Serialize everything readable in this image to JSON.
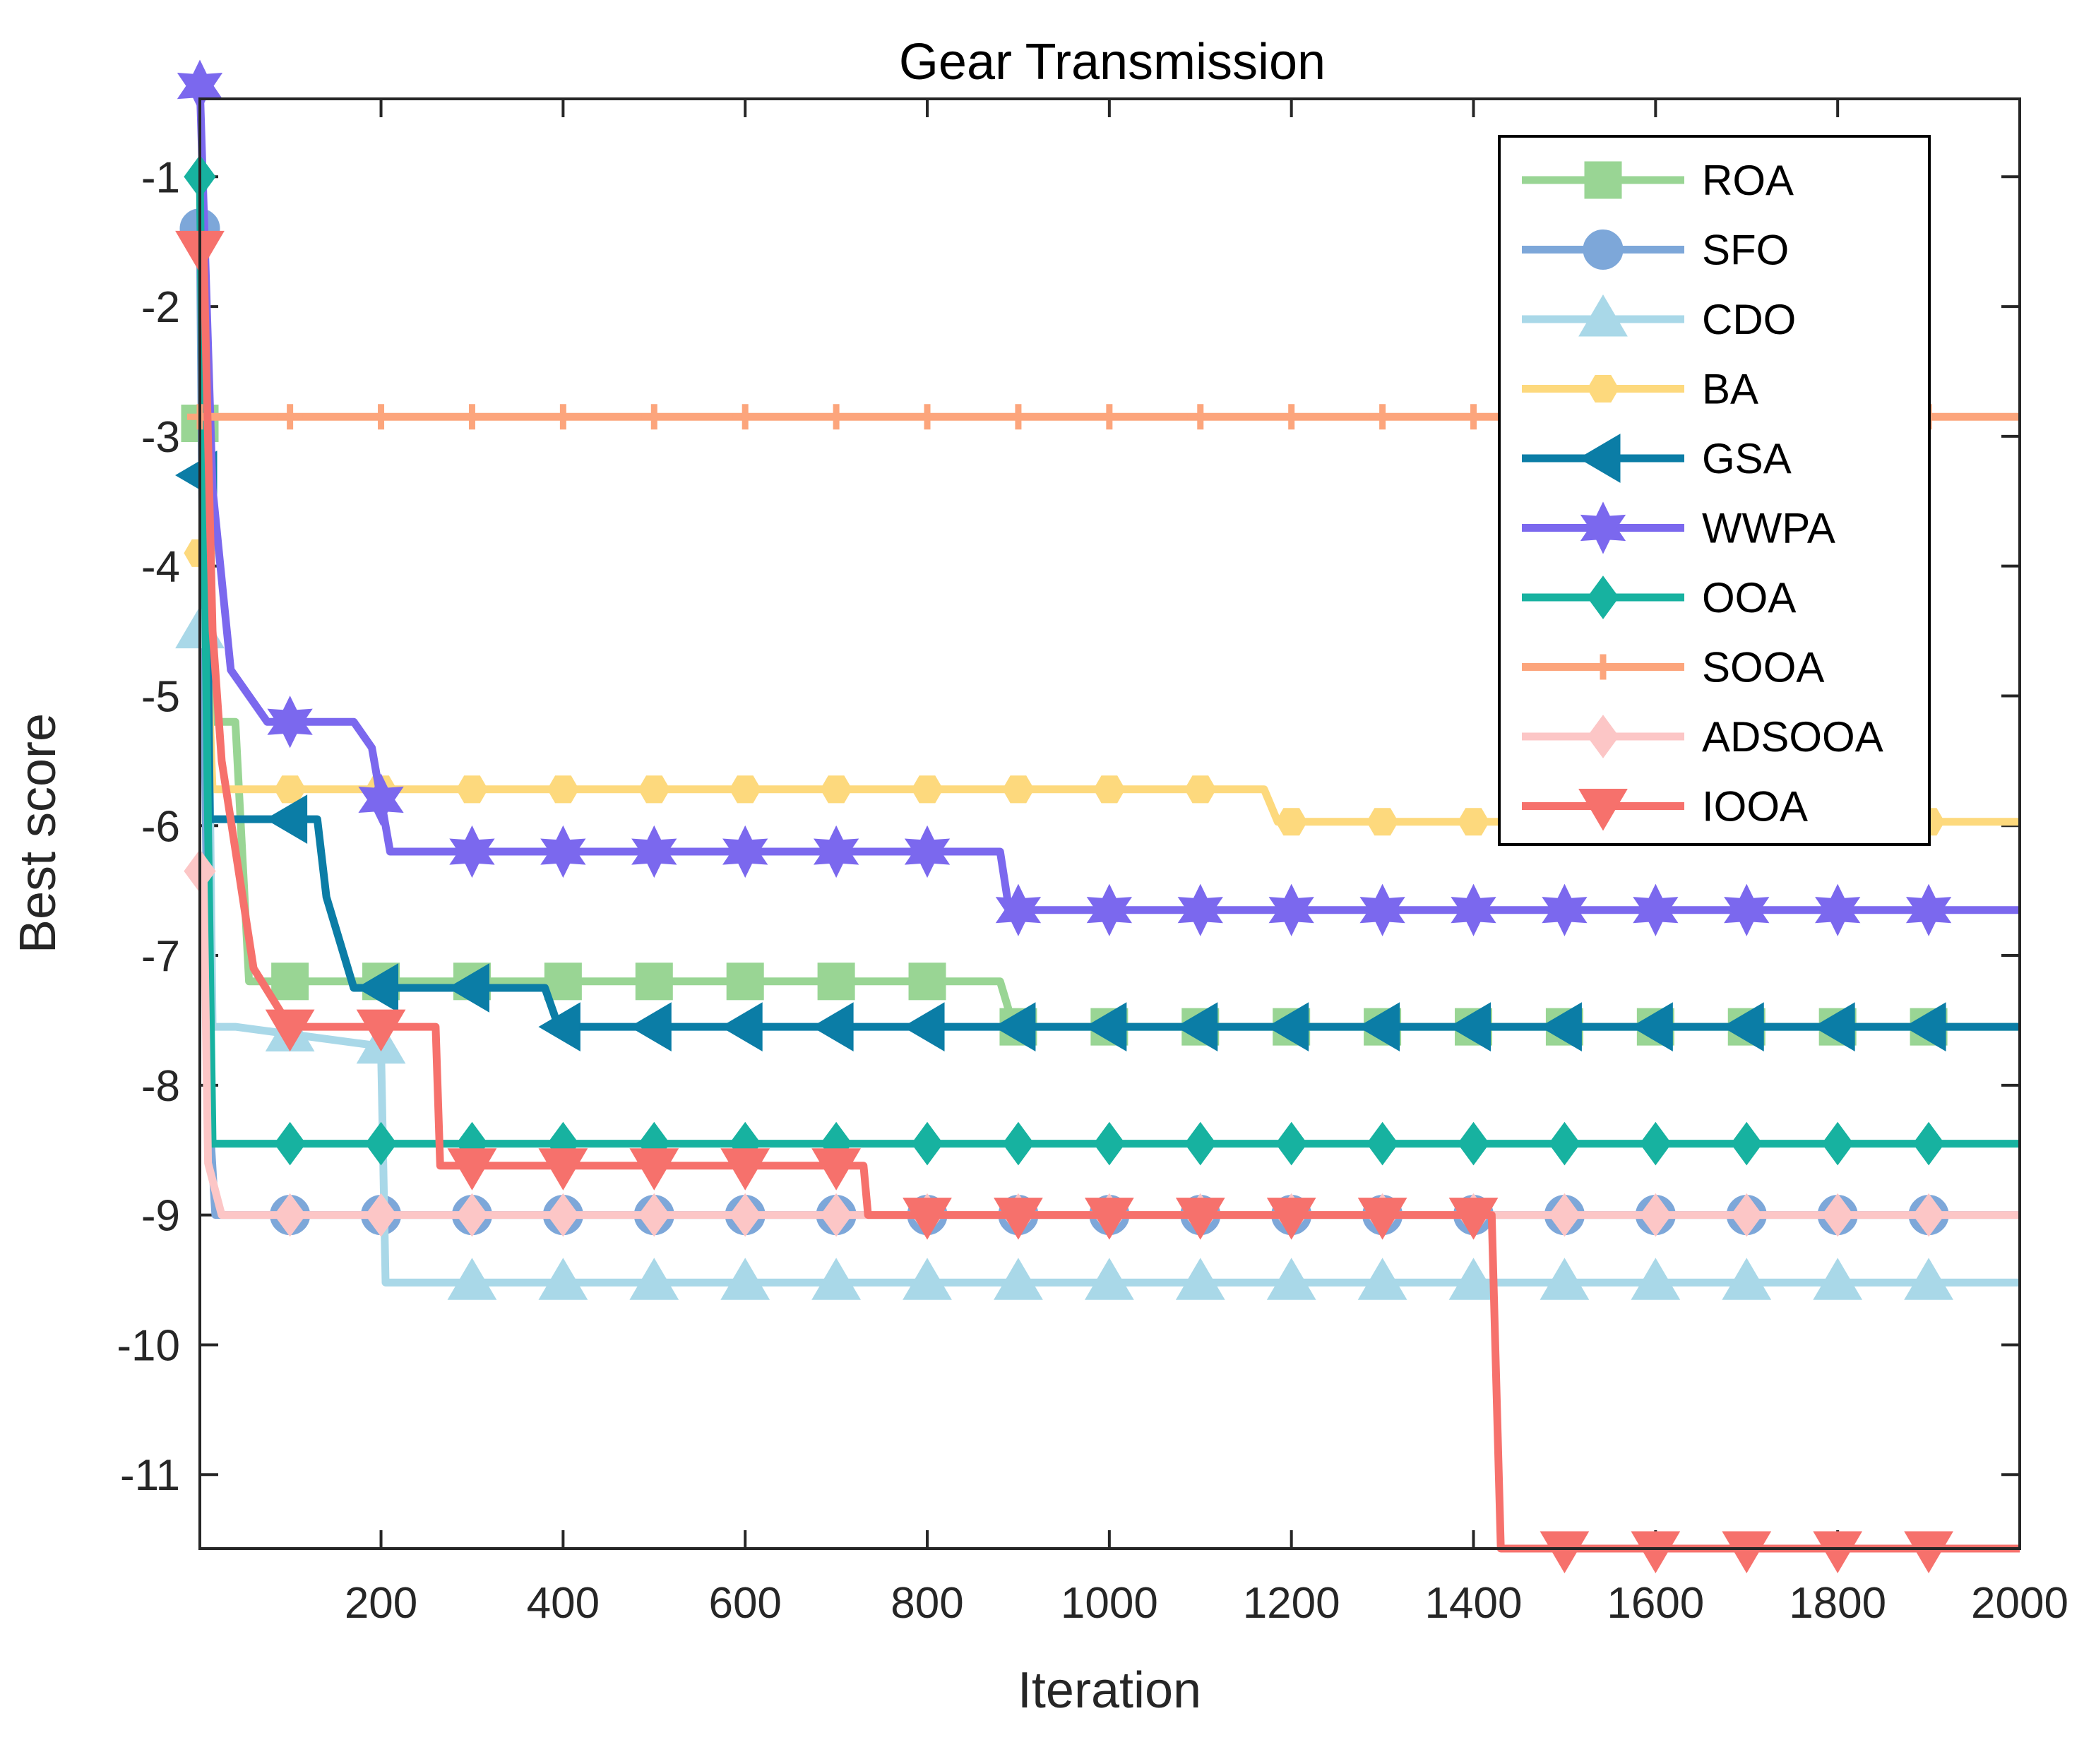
{
  "chart_data": {
    "type": "line",
    "title": "Gear Transmission",
    "xlabel": "Iteration",
    "ylabel": "Best score",
    "xlim": [
      1,
      2000
    ],
    "ylim": [
      -11.57,
      -0.4
    ],
    "xticks": [
      200,
      400,
      600,
      800,
      1000,
      1200,
      1400,
      1600,
      1800,
      2000
    ],
    "yticks": [
      -1,
      -2,
      -3,
      -4,
      -5,
      -6,
      -7,
      -8,
      -9,
      -10,
      -11
    ],
    "legend_position": "top-right",
    "series": [
      {
        "name": "ROA",
        "color": "#99d594",
        "marker": "square",
        "x": [
          1,
          12,
          15,
          40,
          55,
          200,
          880,
          895,
          2000
        ],
        "y": [
          -2.9,
          -2.9,
          -5.2,
          -5.2,
          -7.2,
          -7.2,
          -7.2,
          -7.55,
          -7.55
        ]
      },
      {
        "name": "SFO",
        "color": "#7da7d9",
        "marker": "circle",
        "x": [
          1,
          5,
          12,
          18,
          2000
        ],
        "y": [
          -1.4,
          -4.7,
          -8.3,
          -9.0,
          -9.0
        ]
      },
      {
        "name": "CDO",
        "color": "#a9d8e8",
        "marker": "triangle-up",
        "x": [
          1,
          10,
          15,
          40,
          200,
          205,
          2000
        ],
        "y": [
          -4.5,
          -4.5,
          -7.55,
          -7.55,
          -7.7,
          -9.52,
          -9.52
        ]
      },
      {
        "name": "BA",
        "color": "#fdd97d",
        "marker": "hexagon",
        "x": [
          1,
          5,
          15,
          1170,
          1185,
          2000
        ],
        "y": [
          -3.9,
          -3.9,
          -5.72,
          -5.72,
          -5.97,
          -5.97
        ]
      },
      {
        "name": "GSA",
        "color": "#0b7da6",
        "marker": "triangle-left",
        "x": [
          1,
          8,
          12,
          130,
          140,
          170,
          210,
          380,
          395,
          2000
        ],
        "y": [
          -3.3,
          -3.3,
          -5.95,
          -5.95,
          -6.55,
          -7.25,
          -7.25,
          -7.25,
          -7.55,
          -7.55
        ]
      },
      {
        "name": "WWPA",
        "color": "#7b68ee",
        "marker": "hexagram",
        "x": [
          1,
          15,
          35,
          75,
          170,
          190,
          210,
          880,
          890,
          2000
        ],
        "y": [
          -0.3,
          -3.4,
          -4.8,
          -5.2,
          -5.2,
          -5.4,
          -6.2,
          -6.2,
          -6.65,
          -6.65
        ]
      },
      {
        "name": "OOA",
        "color": "#17b2a0",
        "marker": "diamond",
        "x": [
          1,
          10,
          15,
          2000
        ],
        "y": [
          -1.0,
          -6.0,
          -8.45,
          -8.45
        ]
      },
      {
        "name": "SOOA",
        "color": "#fca57c",
        "marker": "plus",
        "x": [
          1,
          2000
        ],
        "y": [
          -2.85,
          -2.85
        ]
      },
      {
        "name": "ADSOOA",
        "color": "#fcc6c6",
        "marker": "diamond",
        "x": [
          1,
          5,
          10,
          25,
          2000
        ],
        "y": [
          -6.35,
          -6.35,
          -8.6,
          -9.0,
          -9.0
        ]
      },
      {
        "name": "IOOA",
        "color": "#f6716c",
        "marker": "triangle-down",
        "x": [
          1,
          5,
          15,
          25,
          60,
          100,
          260,
          265,
          730,
          735,
          1420,
          1430,
          2000
        ],
        "y": [
          -1.55,
          -1.55,
          -4.5,
          -5.5,
          -7.1,
          -7.55,
          -7.55,
          -8.62,
          -8.62,
          -9.0,
          -9.0,
          -11.57,
          -11.57
        ]
      }
    ]
  }
}
